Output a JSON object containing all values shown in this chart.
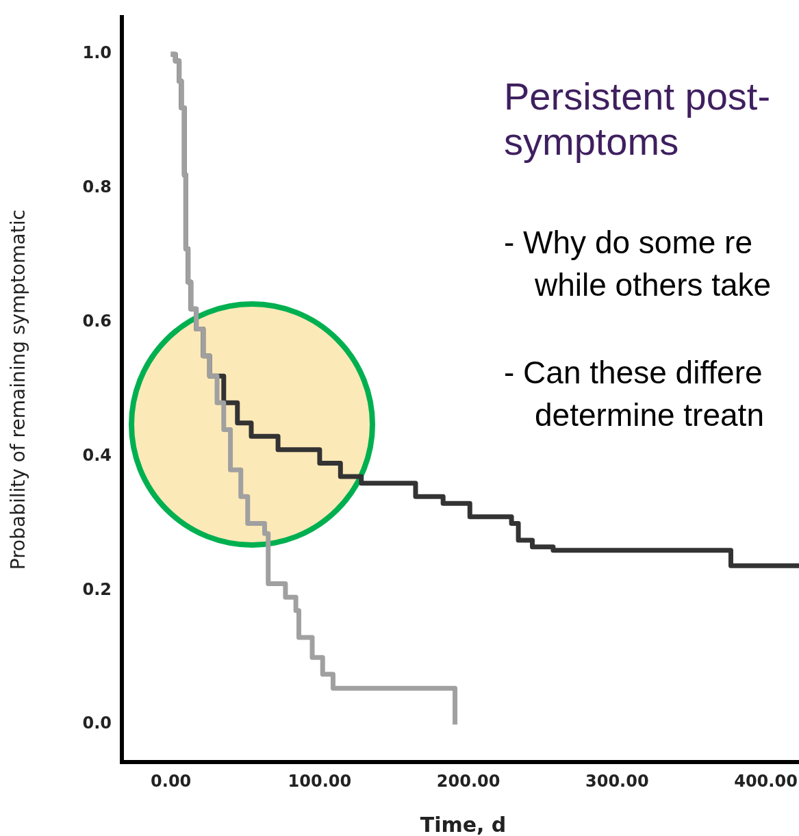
{
  "chart_data": {
    "type": "step",
    "title": "Persistent post- symptoms",
    "xlabel": "Time, d",
    "ylabel": "Probability of remaining symptomatic",
    "annotations": [
      "- Why do some re while others take",
      "- Can these differe determine treatn"
    ],
    "series": [
      {
        "color": "#a0a0a0",
        "x": [
          0,
          3,
          5.5,
          7,
          9,
          10,
          11.5,
          13.4,
          17,
          21.7,
          26,
          31,
          35.5,
          40,
          47,
          51.6,
          63,
          65.4,
          77,
          84,
          86,
          95,
          102,
          109,
          190,
          191
        ],
        "values": [
          1.0,
          0.99,
          0.96,
          0.92,
          0.82,
          0.71,
          0.66,
          0.62,
          0.59,
          0.55,
          0.52,
          0.48,
          0.44,
          0.38,
          0.34,
          0.3,
          0.285,
          0.21,
          0.19,
          0.17,
          0.13,
          0.1,
          0.075,
          0.054,
          0.054,
          0.0
        ]
      },
      {
        "color": "#333333",
        "x": [
          0,
          3,
          5.5,
          7,
          9,
          10,
          11.5,
          13.4,
          17,
          21.7,
          26,
          35.5,
          44.7,
          54,
          72,
          100,
          114,
          128,
          146,
          164.5,
          183,
          201,
          229,
          233.6,
          243,
          257,
          376.5,
          376.5,
          426
        ],
        "values": [
          1.0,
          0.99,
          0.96,
          0.92,
          0.82,
          0.71,
          0.66,
          0.62,
          0.59,
          0.55,
          0.52,
          0.48,
          0.45,
          0.43,
          0.41,
          0.39,
          0.37,
          0.36,
          0.36,
          0.34,
          0.33,
          0.31,
          0.3,
          0.275,
          0.265,
          0.26,
          0.26,
          0.237,
          0.237
        ]
      }
    ],
    "xlim": [
      -33,
      426
    ],
    "ylim": [
      -0.056,
      1.055
    ],
    "xticks": [
      {
        "value": 0,
        "label": "0.00"
      },
      {
        "value": 100,
        "label": "100.00"
      },
      {
        "value": 200,
        "label": "200.00"
      },
      {
        "value": 300,
        "label": "300.00"
      },
      {
        "value": 400,
        "label": "400.00"
      }
    ],
    "yticks": [
      {
        "value": 0,
        "label": "0.0"
      },
      {
        "value": 0.2,
        "label": "0.2"
      },
      {
        "value": 0.4,
        "label": "0.4"
      },
      {
        "value": 0.6,
        "label": "0.6"
      },
      {
        "value": 0.8,
        "label": "0.8"
      },
      {
        "value": 1,
        "label": "1.0"
      }
    ],
    "grid": false,
    "legend": false,
    "line_style": "solid",
    "marker": "none"
  }
}
